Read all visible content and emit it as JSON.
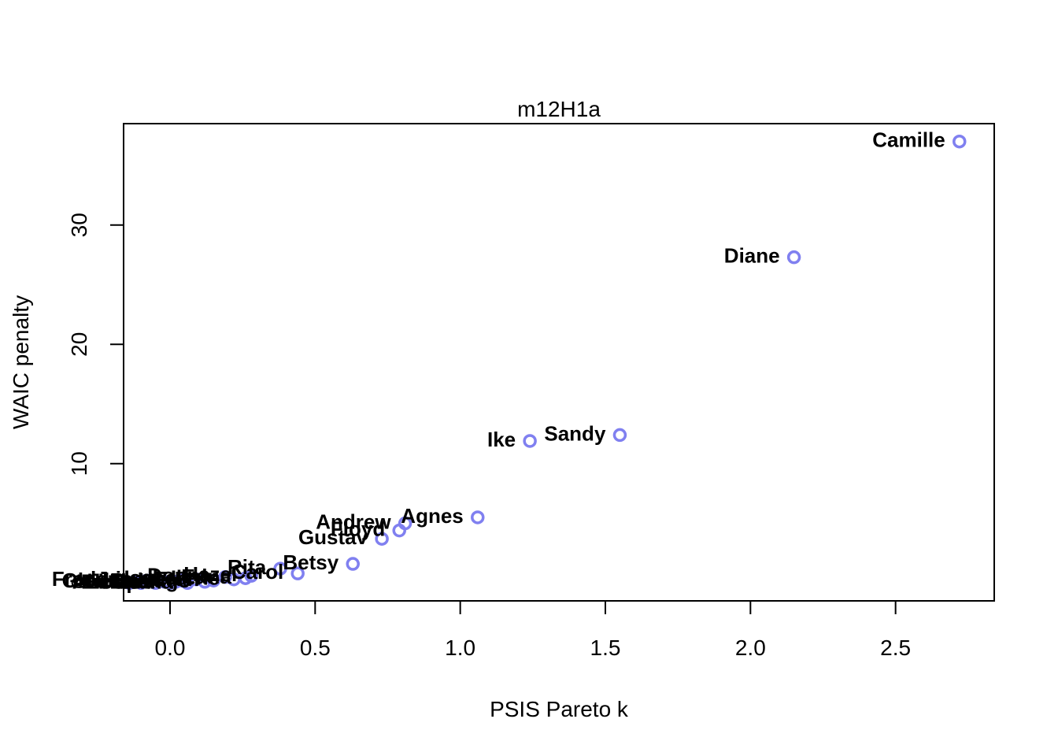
{
  "chart_data": {
    "type": "scatter",
    "title": "m12H1a",
    "xlabel": "PSIS Pareto k",
    "ylabel": "WAIC penalty",
    "xlim": [
      -0.16,
      2.84
    ],
    "ylim": [
      -1.5,
      38.5
    ],
    "xticks": [
      0.0,
      0.5,
      1.0,
      1.5,
      2.0,
      2.5
    ],
    "xtick_labels": [
      "0.0",
      "0.5",
      "1.0",
      "1.5",
      "2.0",
      "2.5"
    ],
    "yticks": [
      0,
      10,
      20,
      30
    ],
    "ytick_labels": [
      "0",
      "10",
      "20",
      "30"
    ],
    "marker_color": "#8080f0",
    "grid": false,
    "points": [
      {
        "x": 2.72,
        "y": 37.0,
        "label": "Camille",
        "pos": "left"
      },
      {
        "x": 2.15,
        "y": 27.3,
        "label": "Diane",
        "pos": "left"
      },
      {
        "x": 1.55,
        "y": 12.4,
        "label": "Sandy",
        "pos": "left"
      },
      {
        "x": 1.24,
        "y": 11.9,
        "label": "Ike",
        "pos": "left"
      },
      {
        "x": 1.06,
        "y": 5.5,
        "label": "Agnes",
        "pos": "left"
      },
      {
        "x": 0.81,
        "y": 5.0,
        "label": "Andrew",
        "pos": "left"
      },
      {
        "x": 0.79,
        "y": 4.4,
        "label": "Floyd",
        "pos": "left"
      },
      {
        "x": 0.73,
        "y": 3.7,
        "label": "Gustav",
        "pos": "left"
      },
      {
        "x": 0.63,
        "y": 1.6,
        "label": "Betsy",
        "pos": "left"
      },
      {
        "x": 0.44,
        "y": 0.8,
        "label": "Carol",
        "pos": "left"
      },
      {
        "x": 0.38,
        "y": 1.2,
        "label": "Rita",
        "pos": "left"
      },
      {
        "x": 0.28,
        "y": 0.6,
        "label": "Hazel",
        "pos": "left"
      },
      {
        "x": 0.26,
        "y": 0.4,
        "label": "Edna",
        "pos": "left"
      },
      {
        "x": 0.22,
        "y": 0.3,
        "label": "Irene",
        "pos": "left"
      },
      {
        "x": 0.19,
        "y": 0.5,
        "label": "Donna",
        "pos": "left"
      },
      {
        "x": 0.15,
        "y": 0.2,
        "label": "Fran",
        "pos": "left"
      },
      {
        "x": 0.12,
        "y": 0.1,
        "label": "Hugo",
        "pos": "left"
      },
      {
        "x": 0.09,
        "y": 0.3,
        "label": "Isabel",
        "pos": "left"
      },
      {
        "x": 0.06,
        "y": 0.0,
        "label": "Katrina",
        "pos": "left"
      },
      {
        "x": 0.04,
        "y": 0.2,
        "label": "Jeanne",
        "pos": "left"
      },
      {
        "x": 0.02,
        "y": 0.1,
        "label": "Ivan",
        "pos": "left"
      },
      {
        "x": 0.0,
        "y": 0.0,
        "label": "Opal",
        "pos": "left"
      },
      {
        "x": -0.02,
        "y": 0.1,
        "label": "Bob",
        "pos": "left"
      },
      {
        "x": -0.05,
        "y": 0.0,
        "label": "Eloise",
        "pos": "left"
      },
      {
        "x": -0.08,
        "y": 0.2,
        "label": "Frederic",
        "pos": "left"
      },
      {
        "x": -0.1,
        "y": 0.0,
        "label": "Alicia",
        "pos": "left"
      },
      {
        "x": -0.12,
        "y": 0.1,
        "label": "Gloria",
        "pos": "left"
      },
      {
        "x": -0.14,
        "y": 0.0,
        "label": "Lili",
        "pos": "left"
      }
    ]
  }
}
